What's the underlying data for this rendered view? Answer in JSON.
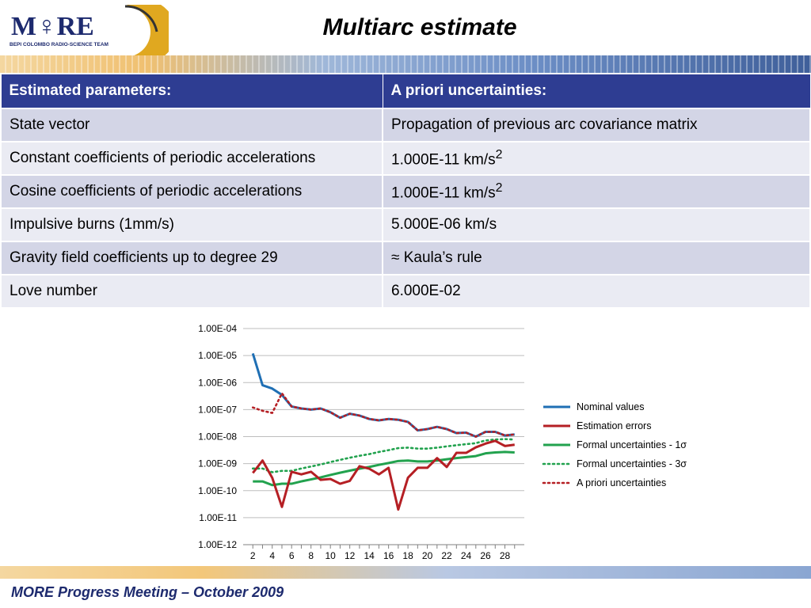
{
  "logo": {
    "text": "M♀RE",
    "subtext": "BEPI COLOMBO RADIO-SCIENCE TEAM"
  },
  "slide": {
    "title": "Multiarc estimate"
  },
  "table": {
    "headers": [
      "Estimated parameters:",
      "A priori uncertainties:"
    ],
    "rows": [
      {
        "param": "State vector",
        "uncertainty": "Propagation of previous arc covariance matrix",
        "sup": ""
      },
      {
        "param": "Constant coefficients of periodic accelerations",
        "uncertainty": "1.000E-11 km/s",
        "sup": "2"
      },
      {
        "param": "Cosine coefficients of periodic accelerations",
        "uncertainty": "1.000E-11 km/s",
        "sup": "2"
      },
      {
        "param": "Impulsive burns (1mm/s)",
        "uncertainty": "5.000E-06 km/s",
        "sup": ""
      },
      {
        "param": "Gravity field coefficients up to degree 29",
        "uncertainty": "≈ Kaula’s rule",
        "sup": ""
      },
      {
        "param": "Love number",
        "uncertainty": "6.000E-02",
        "sup": ""
      }
    ]
  },
  "chart_data": {
    "type": "line",
    "scale": "log",
    "ylim": [
      1e-12,
      0.0001
    ],
    "y_tick_labels": [
      "1.00E-04",
      "1.00E-05",
      "1.00E-06",
      "1.00E-07",
      "1.00E-08",
      "1.00E-09",
      "1.00E-10",
      "1.00E-11",
      "1.00E-12"
    ],
    "x": [
      2,
      3,
      4,
      5,
      6,
      7,
      8,
      9,
      10,
      11,
      12,
      13,
      14,
      15,
      16,
      17,
      18,
      19,
      20,
      21,
      22,
      23,
      24,
      25,
      26,
      27,
      28,
      29
    ],
    "x_tick_labels": [
      "2",
      "4",
      "6",
      "8",
      "10",
      "12",
      "14",
      "16",
      "18",
      "20",
      "22",
      "24",
      "26",
      "28"
    ],
    "grid": "horizontal",
    "legend_position": "right",
    "series": [
      {
        "name": "Nominal values",
        "color": "#1f6fb4",
        "style": "solid",
        "values": [
          1.2e-05,
          8e-07,
          6e-07,
          3.5e-07,
          1.3e-07,
          1.1e-07,
          1e-07,
          1.1e-07,
          8e-08,
          5e-08,
          7e-08,
          6e-08,
          4.5e-08,
          4e-08,
          4.5e-08,
          4.2e-08,
          3.5e-08,
          1.7e-08,
          1.9e-08,
          2.3e-08,
          1.9e-08,
          1.35e-08,
          1.4e-08,
          1e-08,
          1.5e-08,
          1.5e-08,
          1.1e-08,
          1.2e-08
        ]
      },
      {
        "name": "Estimation errors",
        "color": "#b51f24",
        "style": "solid",
        "values": [
          4.5e-10,
          1.3e-09,
          3e-10,
          2.5e-11,
          5e-10,
          4e-10,
          5e-10,
          2.5e-10,
          2.7e-10,
          1.8e-10,
          2.3e-10,
          8e-10,
          6.5e-10,
          4e-10,
          7e-10,
          2e-11,
          3e-10,
          7e-10,
          7e-10,
          1.6e-09,
          7.5e-10,
          2.5e-09,
          2.5e-09,
          4e-09,
          5.5e-09,
          7e-09,
          4.5e-09,
          5e-09
        ]
      },
      {
        "name": "Formal uncertainties - 1σ",
        "color": "#22a24e",
        "style": "solid",
        "values": [
          2.2e-10,
          2.2e-10,
          1.6e-10,
          1.8e-10,
          1.8e-10,
          2.2e-10,
          2.6e-10,
          3.1e-10,
          3.8e-10,
          4.6e-10,
          5.5e-10,
          6.5e-10,
          7.5e-10,
          9e-10,
          1.05e-09,
          1.25e-09,
          1.3e-09,
          1.2e-09,
          1.2e-09,
          1.3e-09,
          1.45e-09,
          1.6e-09,
          1.75e-09,
          1.9e-09,
          2.4e-09,
          2.6e-09,
          2.7e-09,
          2.6e-09
        ]
      },
      {
        "name": "Formal uncertainties - 3σ",
        "color": "#22a24e",
        "style": "dotted",
        "values": [
          6.6e-10,
          6.6e-10,
          4.8e-10,
          5.4e-10,
          5.4e-10,
          6.6e-10,
          7.8e-10,
          9.3e-10,
          1.14e-09,
          1.38e-09,
          1.65e-09,
          1.95e-09,
          2.25e-09,
          2.7e-09,
          3.15e-09,
          3.75e-09,
          3.9e-09,
          3.6e-09,
          3.6e-09,
          3.9e-09,
          4.35e-09,
          4.8e-09,
          5.25e-09,
          5.7e-09,
          7.2e-09,
          7.8e-09,
          8.1e-09,
          7.8e-09
        ]
      },
      {
        "name": "A priori uncertainties",
        "color": "#b51f24",
        "style": "dotted",
        "values": [
          1.2e-07,
          9e-08,
          7.5e-08,
          4e-07,
          1.3e-07,
          1.1e-07,
          1e-07,
          1.1e-07,
          8e-08,
          5e-08,
          7e-08,
          6e-08,
          4.5e-08,
          4e-08,
          4.5e-08,
          4.2e-08,
          3.5e-08,
          1.7e-08,
          1.9e-08,
          2.3e-08,
          1.9e-08,
          1.35e-08,
          1.4e-08,
          1e-08,
          1.5e-08,
          1.5e-08,
          1.1e-08,
          1.2e-08
        ]
      }
    ]
  },
  "footer": {
    "text": "MORE Progress Meeting – October 2009"
  }
}
